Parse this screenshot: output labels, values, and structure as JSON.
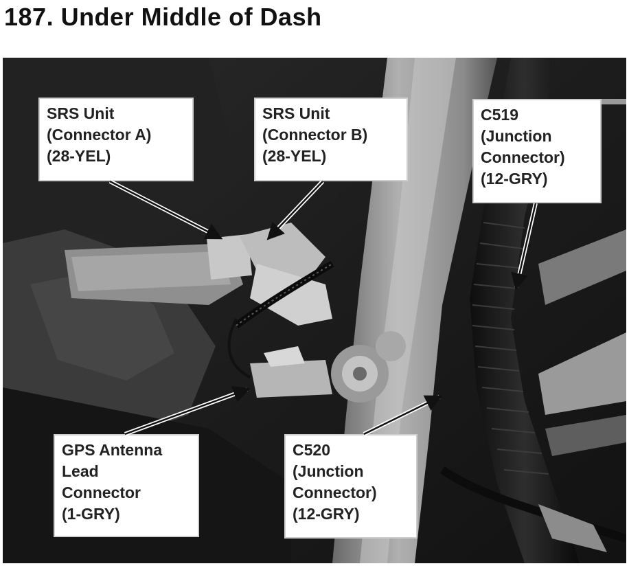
{
  "title": "187. Under Middle of Dash",
  "callouts": {
    "srs_a": {
      "lines": [
        "SRS Unit",
        "(Connector A)",
        "(28-YEL)"
      ]
    },
    "srs_b": {
      "lines": [
        "SRS Unit",
        "(Connector B)",
        "(28-YEL)"
      ]
    },
    "c519": {
      "lines": [
        "C519",
        "(Junction",
        "Connector)",
        "(12-GRY)"
      ]
    },
    "gps": {
      "lines": [
        "GPS Antenna",
        "Lead",
        "Connector",
        "(1-GRY)"
      ]
    },
    "c520": {
      "lines": [
        "C520",
        "(Junction",
        "Connector)",
        "(12-GRY)"
      ]
    }
  }
}
